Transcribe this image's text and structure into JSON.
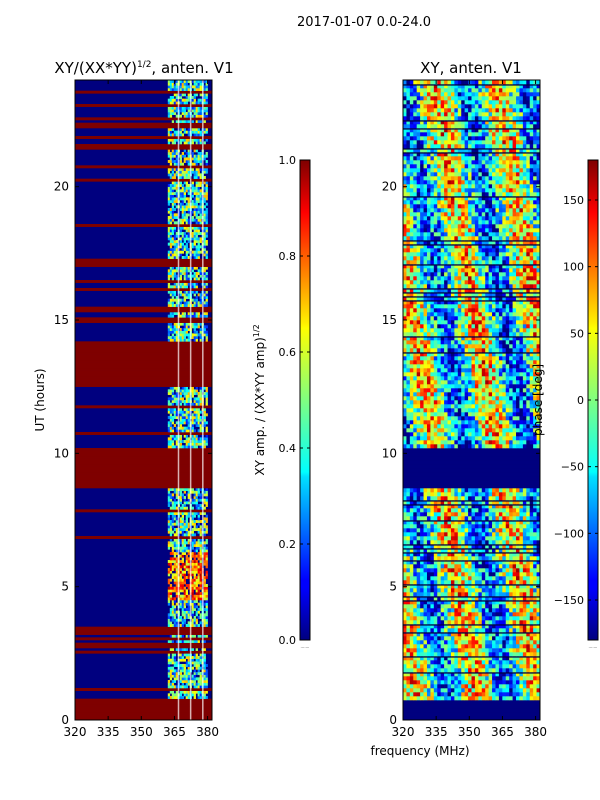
{
  "suptitle": "2017-01-07 0.0-24.0",
  "chart_data": [
    {
      "type": "heatmap",
      "title": "XY/(XX*YY)^1/2, anten. V1",
      "title_main": "XY/(XX*YY)",
      "title_exp": "1/2",
      "title_suffix": ", anten. V1",
      "ylabel": "UT (hours)",
      "ylim": [
        0,
        24
      ],
      "xlim": [
        320,
        382
      ],
      "xticks": [
        320,
        335,
        350,
        365,
        380
      ],
      "yticks": [
        0,
        5,
        10,
        15,
        20
      ],
      "colorbar": {
        "label_main": "XY amp. / (XX*YY amp)",
        "label_exp": "1/2",
        "range": [
          0.0,
          1.0
        ],
        "ticks": [
          "0.0",
          "0.2",
          "0.4",
          "0.6",
          "0.8",
          "1.0"
        ],
        "tick_values": [
          0.0,
          0.2,
          0.4,
          0.6,
          0.8,
          1.0
        ]
      },
      "flagged_bands_hours": [
        [
          0,
          0.8
        ],
        [
          8.7,
          10.2
        ],
        [
          17.0,
          17.3
        ],
        [
          21.4,
          21.6
        ],
        [
          12.5,
          14.2
        ],
        [
          15.3,
          15.5
        ]
      ],
      "active_band_mhz": [
        362,
        380
      ]
    },
    {
      "type": "heatmap",
      "title": "XY, anten. V1",
      "ylim": [
        0,
        24
      ],
      "xlim": [
        320,
        382
      ],
      "xticks": [
        320,
        335,
        350,
        365,
        380
      ],
      "yticks": [
        0,
        5,
        10,
        15,
        20
      ],
      "colorbar": {
        "label": "phase [deg]",
        "range": [
          -180,
          180
        ],
        "ticks": [
          "150",
          "100",
          "50",
          "0",
          "−50",
          "−100",
          "−150"
        ],
        "tick_values": [
          150,
          100,
          50,
          0,
          -50,
          -100,
          -150
        ]
      },
      "flagged_bands_hours": [
        [
          0,
          0.8
        ],
        [
          8.7,
          10.2
        ]
      ]
    }
  ],
  "xlabel_shared": "frequency (MHz)",
  "colors": {
    "jet_dark_blue": "#00007f",
    "jet_blue": "#0000ff",
    "jet_cyan": "#00ffff",
    "jet_yellow": "#ffff00",
    "jet_red": "#ff0000",
    "jet_dark_red": "#7f0000"
  }
}
